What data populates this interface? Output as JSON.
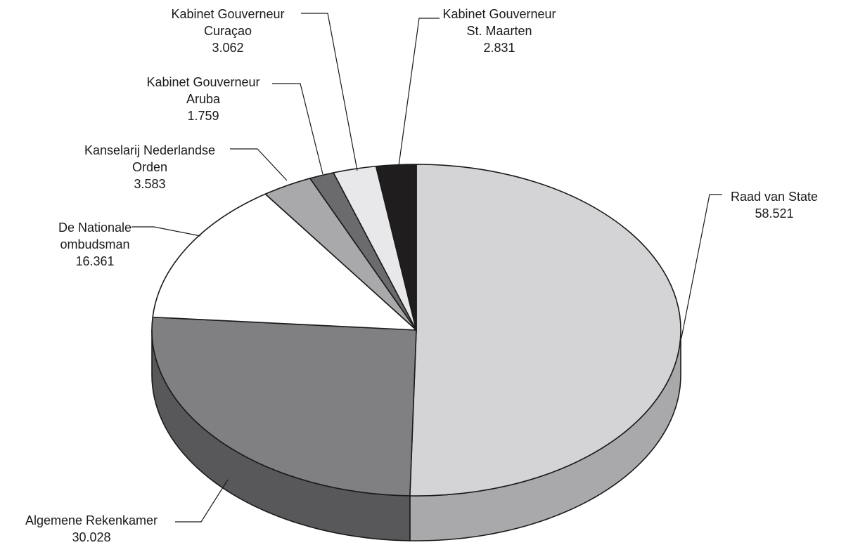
{
  "chart_data": {
    "type": "pie",
    "variant": "3d",
    "slices": [
      {
        "label": [
          "Raad van State"
        ],
        "value_text": "58.521",
        "value": 58.521,
        "color": "#d4d4d6",
        "side_color": "#a9a9ab"
      },
      {
        "label": [
          "Algemene Rekenkamer"
        ],
        "value_text": "30.028",
        "value": 30.028,
        "color": "#808083",
        "side_color": "#58585b"
      },
      {
        "label": [
          "De Nationale",
          "ombudsman"
        ],
        "value_text": "16.361",
        "value": 16.361,
        "color": "#ffffff",
        "side_color": "#cfcfcf"
      },
      {
        "label": [
          "Kanselarij Nederlandse",
          "Orden"
        ],
        "value_text": "3.583",
        "value": 3.583,
        "color": "#a9a9ab",
        "side_color": "#7d7d80"
      },
      {
        "label": [
          "Kabinet Gouverneur",
          "Aruba"
        ],
        "value_text": "1.759",
        "value": 1.759,
        "color": "#6b6b6e",
        "side_color": "#4a4a4d"
      },
      {
        "label": [
          "Kabinet Gouverneur",
          "Curaçao"
        ],
        "value_text": "3.062",
        "value": 3.062,
        "color": "#e8e8ea",
        "side_color": "#bdbdbf"
      },
      {
        "label": [
          "Kabinet Gouverneur",
          "St. Maarten"
        ],
        "value_text": "2.831",
        "value": 2.831,
        "color": "#1f1d1e",
        "side_color": "#111111"
      }
    ]
  }
}
